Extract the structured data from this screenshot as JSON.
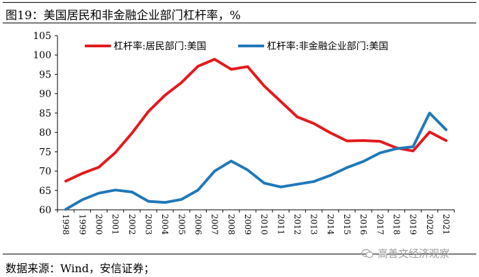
{
  "title": "图19：美国居民和非金融企业部门杠杆率，%",
  "source": "数据来源：Wind，安信证券；",
  "watermark": "高善文经济观察",
  "chart_data": {
    "type": "line",
    "title": "",
    "xlabel": "",
    "ylabel": "",
    "ylim": [
      60,
      105
    ],
    "yticks": [
      60,
      65,
      70,
      75,
      80,
      85,
      90,
      95,
      100,
      105
    ],
    "legend_position": "top",
    "x": [
      "1998",
      "1999",
      "2000",
      "2001",
      "2002",
      "2003",
      "2004",
      "2005",
      "2006",
      "2007",
      "2008",
      "2009",
      "2010",
      "2011",
      "2012",
      "2013",
      "2014",
      "2015",
      "2016",
      "2017",
      "2018",
      "2019",
      "2020",
      "2021"
    ],
    "series": [
      {
        "name": "杠杆率:居民部门:美国",
        "color": "#e3191c",
        "values": [
          67.4,
          69.4,
          71.0,
          74.8,
          79.8,
          85.4,
          89.6,
          92.9,
          97.1,
          98.9,
          96.3,
          97.0,
          92.0,
          88.0,
          84.0,
          82.3,
          79.9,
          77.8,
          77.9,
          77.7,
          76.0,
          75.2,
          80.1,
          77.9
        ]
      },
      {
        "name": "杠杆率:非金融企业部门:美国",
        "color": "#1f78b9",
        "values": [
          60.1,
          62.6,
          64.3,
          65.1,
          64.6,
          62.2,
          61.9,
          62.7,
          65.1,
          70.0,
          72.6,
          70.3,
          66.9,
          65.9,
          66.6,
          67.3,
          68.9,
          70.9,
          72.5,
          74.7,
          75.8,
          76.3,
          85.0,
          80.7
        ]
      }
    ]
  }
}
